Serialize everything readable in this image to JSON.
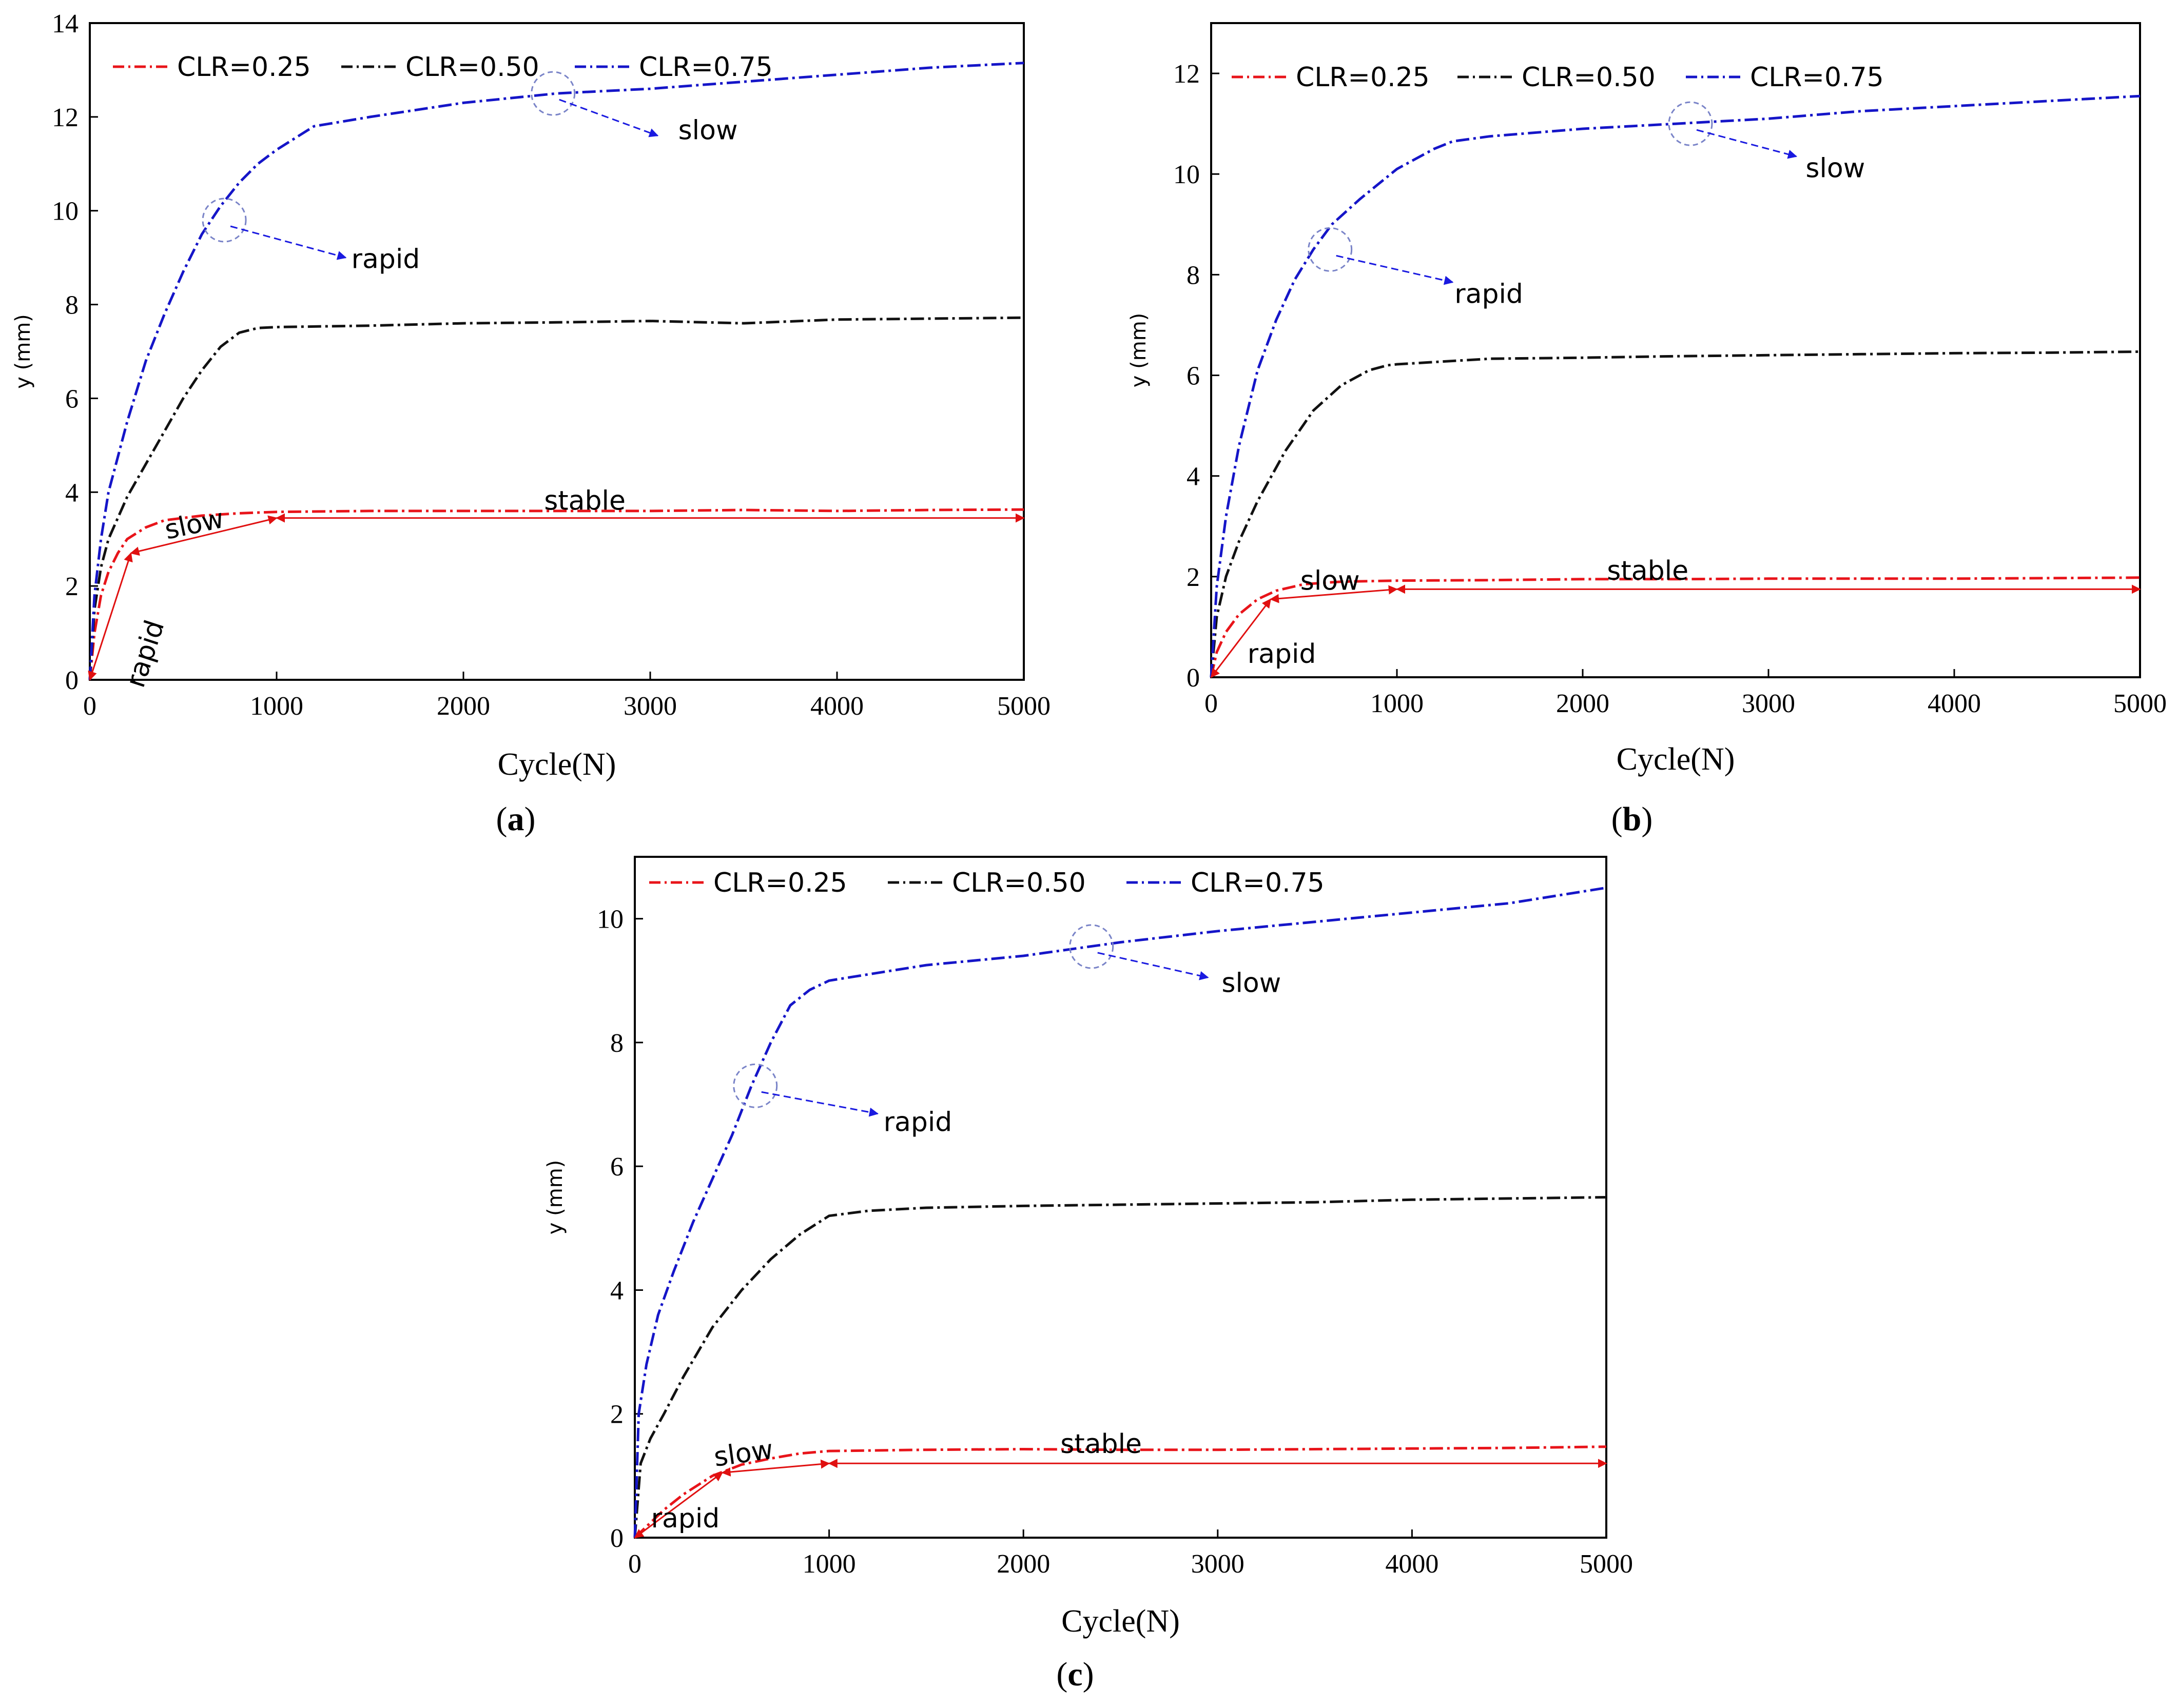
{
  "colors": {
    "clr025": "#e8141a",
    "clr050": "#111111",
    "clr075": "#1515c8",
    "arrow_blue": "#1a1ae0",
    "arrow_red": "#e01010",
    "circle": "#7a84c8"
  },
  "chart_data": [
    {
      "id": "a",
      "type": "line",
      "caption_open": "(",
      "caption_letter": "a",
      "caption_close": ")",
      "xlabel": "Cycle(N)",
      "ylabel": "y (mm)",
      "xlim": [
        0,
        5000
      ],
      "ylim": [
        0,
        14
      ],
      "xticks": [
        0,
        1000,
        2000,
        3000,
        4000,
        5000
      ],
      "xtick_labels": [
        "0",
        "1000",
        "2000",
        "3000",
        "4000",
        "5000"
      ],
      "yticks": [
        0,
        2,
        4,
        6,
        8,
        10,
        12,
        14
      ],
      "ytick_labels": [
        "0",
        "2",
        "4",
        "6",
        "8",
        "10",
        "12",
        "14"
      ],
      "legend_labels": [
        "CLR=0.25",
        "CLR=0.50",
        "CLR=0.75"
      ],
      "series": [
        {
          "name": "CLR=0.25",
          "x": [
            0,
            25,
            60,
            100,
            150,
            200,
            300,
            400,
            600,
            800,
            1000,
            1500,
            2000,
            2500,
            3000,
            3500,
            4000,
            4500,
            5000
          ],
          "y": [
            0,
            1.0,
            1.8,
            2.3,
            2.7,
            3.0,
            3.25,
            3.4,
            3.5,
            3.55,
            3.58,
            3.6,
            3.6,
            3.6,
            3.6,
            3.62,
            3.6,
            3.62,
            3.63
          ]
        },
        {
          "name": "CLR=0.50",
          "x": [
            0,
            25,
            60,
            100,
            200,
            300,
            400,
            500,
            600,
            700,
            800,
            900,
            1000,
            1500,
            2000,
            2500,
            3000,
            3500,
            4000,
            4500,
            5000
          ],
          "y": [
            0,
            1.5,
            2.4,
            3.0,
            3.9,
            4.6,
            5.3,
            6.0,
            6.6,
            7.1,
            7.4,
            7.5,
            7.52,
            7.55,
            7.6,
            7.62,
            7.65,
            7.6,
            7.68,
            7.7,
            7.72
          ]
        },
        {
          "name": "CLR=0.75",
          "x": [
            0,
            25,
            60,
            100,
            200,
            300,
            400,
            500,
            600,
            700,
            800,
            900,
            1000,
            1200,
            1500,
            2000,
            2500,
            3000,
            3500,
            4000,
            4500,
            5000
          ],
          "y": [
            0,
            1.8,
            3.0,
            4.0,
            5.5,
            6.8,
            7.8,
            8.7,
            9.5,
            10.1,
            10.6,
            11.0,
            11.3,
            11.8,
            12.0,
            12.3,
            12.5,
            12.6,
            12.75,
            12.9,
            13.05,
            13.15
          ]
        }
      ],
      "annotations": [
        {
          "text": "slow",
          "type": "blue",
          "circle": [
            2480,
            12.5
          ],
          "arrow_to": [
            3040,
            11.6
          ],
          "label_at": [
            3150,
            11.7
          ]
        },
        {
          "text": "rapid",
          "type": "blue",
          "circle": [
            720,
            9.8
          ],
          "arrow_to": [
            1370,
            9.0
          ],
          "label_at": [
            1400,
            8.95
          ]
        },
        {
          "text": "stable",
          "type": "span",
          "span": [
            1000,
            5000,
            3.45
          ],
          "label_at": [
            2650,
            3.8
          ]
        },
        {
          "text": "slow",
          "type": "slant",
          "span": [
            220,
            1000,
            2.7,
            3.45
          ],
          "label_at": [
            560,
            3.3
          ],
          "rotate": -12
        },
        {
          "text": "rapid",
          "type": "vertical",
          "span": [
            0,
            220,
            0,
            2.7
          ],
          "label_at": [
            300,
            0.55
          ],
          "rotate": -72
        }
      ]
    },
    {
      "id": "b",
      "type": "line",
      "caption_open": "(",
      "caption_letter": "b",
      "caption_close": ")",
      "xlabel": "Cycle(N)",
      "ylabel": "y (mm)",
      "xlim": [
        0,
        5000
      ],
      "ylim": [
        0,
        13
      ],
      "xticks": [
        0,
        1000,
        2000,
        3000,
        4000,
        5000
      ],
      "xtick_labels": [
        "0",
        "1000",
        "2000",
        "3000",
        "4000",
        "5000"
      ],
      "yticks": [
        0,
        2,
        4,
        6,
        8,
        10,
        12
      ],
      "ytick_labels": [
        "0",
        "2",
        "4",
        "6",
        "8",
        "10",
        "12"
      ],
      "legend_labels": [
        "CLR=0.25",
        "CLR=0.50",
        "CLR=0.75"
      ],
      "series": [
        {
          "name": "CLR=0.25",
          "x": [
            0,
            30,
            80,
            150,
            250,
            350,
            500,
            700,
            1000,
            1500,
            2000,
            2500,
            3000,
            3500,
            4000,
            4500,
            5000
          ],
          "y": [
            0,
            0.5,
            0.9,
            1.25,
            1.55,
            1.72,
            1.85,
            1.9,
            1.92,
            1.93,
            1.95,
            1.95,
            1.96,
            1.96,
            1.96,
            1.97,
            1.98
          ]
        },
        {
          "name": "CLR=0.50",
          "x": [
            0,
            30,
            80,
            150,
            250,
            400,
            550,
            700,
            850,
            950,
            1000,
            1500,
            2000,
            2500,
            3000,
            3500,
            4000,
            4500,
            5000
          ],
          "y": [
            0,
            1.2,
            2.0,
            2.7,
            3.5,
            4.5,
            5.3,
            5.8,
            6.1,
            6.2,
            6.22,
            6.33,
            6.35,
            6.38,
            6.4,
            6.42,
            6.44,
            6.45,
            6.47
          ]
        },
        {
          "name": "CLR=0.75",
          "x": [
            0,
            30,
            80,
            150,
            250,
            350,
            450,
            550,
            650,
            800,
            1000,
            1200,
            1300,
            1500,
            2000,
            2500,
            3000,
            3500,
            4000,
            4500,
            5000
          ],
          "y": [
            0,
            1.8,
            3.2,
            4.6,
            6.1,
            7.1,
            7.9,
            8.5,
            9.0,
            9.5,
            10.1,
            10.5,
            10.65,
            10.75,
            10.9,
            11.0,
            11.1,
            11.25,
            11.35,
            11.45,
            11.55
          ]
        }
      ],
      "annotations": [
        {
          "text": "slow",
          "type": "blue",
          "circle": [
            2580,
            11.0
          ],
          "arrow_to": [
            3150,
            10.35
          ],
          "label_at": [
            3200,
            10.1
          ]
        },
        {
          "text": "rapid",
          "type": "blue",
          "circle": [
            640,
            8.5
          ],
          "arrow_to": [
            1300,
            7.85
          ],
          "label_at": [
            1310,
            7.6
          ]
        },
        {
          "text": "stable",
          "type": "span",
          "span": [
            1000,
            5000,
            1.75
          ],
          "label_at": [
            2350,
            2.1
          ]
        },
        {
          "text": "slow",
          "type": "slant",
          "span": [
            320,
            1000,
            1.55,
            1.75
          ],
          "label_at": [
            640,
            1.9
          ],
          "rotate": 0
        },
        {
          "text": "rapid",
          "type": "vertical",
          "span": [
            0,
            320,
            0,
            1.55
          ],
          "label_at": [
            380,
            0.45
          ],
          "rotate": 0
        }
      ]
    },
    {
      "id": "c",
      "type": "line",
      "caption_open": "(",
      "caption_letter": "c",
      "caption_close": ")",
      "xlabel": "Cycle(N)",
      "ylabel": "y (mm)",
      "xlim": [
        0,
        5000
      ],
      "ylim": [
        0,
        11
      ],
      "xticks": [
        0,
        1000,
        2000,
        3000,
        4000,
        5000
      ],
      "xtick_labels": [
        "0",
        "1000",
        "2000",
        "3000",
        "4000",
        "5000"
      ],
      "yticks": [
        0,
        2,
        4,
        6,
        8,
        10
      ],
      "ytick_labels": [
        "0",
        "2",
        "4",
        "6",
        "8",
        "10"
      ],
      "legend_labels": [
        "CLR=0.25",
        "CLR=0.50",
        "CLR=0.75"
      ],
      "series": [
        {
          "name": "CLR=0.25",
          "x": [
            0,
            50,
            150,
            250,
            400,
            550,
            700,
            850,
            1000,
            1500,
            2000,
            2500,
            3000,
            3500,
            4000,
            4500,
            5000
          ],
          "y": [
            0,
            0.15,
            0.45,
            0.7,
            1.0,
            1.18,
            1.28,
            1.36,
            1.4,
            1.42,
            1.43,
            1.42,
            1.42,
            1.43,
            1.44,
            1.45,
            1.47
          ]
        },
        {
          "name": "CLR=0.50",
          "x": [
            0,
            30,
            80,
            150,
            250,
            400,
            550,
            700,
            850,
            1000,
            1200,
            1500,
            2000,
            2500,
            3000,
            3500,
            4000,
            4500,
            5000
          ],
          "y": [
            0,
            1.2,
            1.6,
            2.0,
            2.6,
            3.4,
            4.0,
            4.5,
            4.9,
            5.2,
            5.28,
            5.33,
            5.36,
            5.38,
            5.4,
            5.42,
            5.46,
            5.48,
            5.5
          ]
        },
        {
          "name": "CLR=0.75",
          "x": [
            0,
            20,
            60,
            120,
            200,
            300,
            400,
            500,
            600,
            700,
            800,
            900,
            1000,
            1200,
            1500,
            2000,
            2500,
            3000,
            3500,
            4000,
            4500,
            5000
          ],
          "y": [
            0,
            2.0,
            2.8,
            3.6,
            4.3,
            5.1,
            5.8,
            6.5,
            7.3,
            8.0,
            8.6,
            8.85,
            9.0,
            9.1,
            9.25,
            9.4,
            9.62,
            9.8,
            9.95,
            10.1,
            10.25,
            10.5
          ]
        }
      ],
      "annotations": [
        {
          "text": "slow",
          "type": "blue",
          "circle": [
            2350,
            9.55
          ],
          "arrow_to": [
            2950,
            9.05
          ],
          "label_at": [
            3020,
            8.95
          ]
        },
        {
          "text": "rapid",
          "type": "blue",
          "circle": [
            620,
            7.3
          ],
          "arrow_to": [
            1250,
            6.85
          ],
          "label_at": [
            1280,
            6.7
          ]
        },
        {
          "text": "stable",
          "type": "span",
          "span": [
            1000,
            5000,
            1.2
          ],
          "label_at": [
            2400,
            1.5
          ]
        },
        {
          "text": "slow",
          "type": "slant",
          "span": [
            450,
            1000,
            1.05,
            1.2
          ],
          "label_at": [
            560,
            1.35
          ],
          "rotate": -8
        },
        {
          "text": "rapid",
          "type": "vertical",
          "span": [
            0,
            450,
            0,
            1.05
          ],
          "label_at": [
            260,
            0.3
          ],
          "rotate": 0
        }
      ]
    }
  ]
}
